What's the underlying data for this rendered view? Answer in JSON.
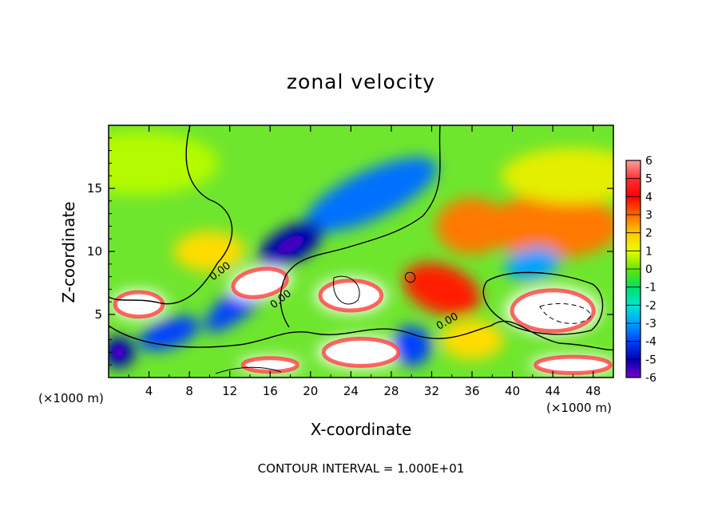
{
  "title": "zonal velocity",
  "footer": "CONTOUR INTERVAL = 1.000E+01",
  "colorbar": {
    "labels": [
      "6",
      "5",
      "4",
      "3",
      "2",
      "1",
      "0",
      "-1",
      "-2",
      "-3",
      "-4",
      "-5",
      "-6"
    ],
    "colors": [
      "#ff9e9e",
      "#ff3030",
      "#ff0000",
      "#ff6a00",
      "#ffc800",
      "#e6ff00",
      "#66e600",
      "#00e064",
      "#00e6d2",
      "#00a0ff",
      "#0040ff",
      "#0000b0",
      "#7a00c8"
    ]
  },
  "chart_data": {
    "type": "heatmap",
    "title": "zonal velocity",
    "xlabel": "X-coordinate",
    "ylabel": "Z-coordinate",
    "x_unit": "(×1000 m)",
    "xlim": [
      0,
      50
    ],
    "ylim": [
      0,
      20
    ],
    "xticks": [
      "4",
      "8",
      "12",
      "16",
      "20",
      "24",
      "28",
      "32",
      "36",
      "40",
      "44",
      "48"
    ],
    "yticks": [
      "5",
      "10",
      "15"
    ],
    "color_scale": {
      "min": -6,
      "max": 6,
      "step": 1
    },
    "contour_labels": [
      "0.00",
      "0.00",
      "0.00"
    ],
    "contour_interval": "1.000E+01",
    "features": [
      {
        "x": 26,
        "y": 14.5,
        "value": -3.5
      },
      {
        "x": 18,
        "y": 10.5,
        "value": -5
      },
      {
        "x": 13,
        "y": 6,
        "value": -4
      },
      {
        "x": 6,
        "y": 3.5,
        "value": -4
      },
      {
        "x": 44,
        "y": 12,
        "value": 3
      },
      {
        "x": 36,
        "y": 12,
        "value": 3
      },
      {
        "x": 33,
        "y": 7,
        "value": 4
      },
      {
        "x": 10,
        "y": 10,
        "value": 2
      },
      {
        "x": 46,
        "y": 16,
        "value": 1.5
      },
      {
        "x": 3,
        "y": 17,
        "value": 0.8
      },
      {
        "x": 24,
        "y": 6.5,
        "value": 6
      },
      {
        "x": 15,
        "y": 7.5,
        "value": 6
      },
      {
        "x": 3,
        "y": 5.8,
        "value": 6
      },
      {
        "x": 44,
        "y": 5.3,
        "value": 6
      },
      {
        "x": 25,
        "y": 2,
        "value": 6
      },
      {
        "x": 46,
        "y": 1,
        "value": 6
      },
      {
        "x": 16,
        "y": 1,
        "value": 6
      },
      {
        "x": 30,
        "y": 2.5,
        "value": -4
      },
      {
        "x": 36,
        "y": 3,
        "value": 2
      },
      {
        "x": 42,
        "y": 9,
        "value": -3
      },
      {
        "x": 1,
        "y": 2,
        "value": -5
      }
    ]
  }
}
